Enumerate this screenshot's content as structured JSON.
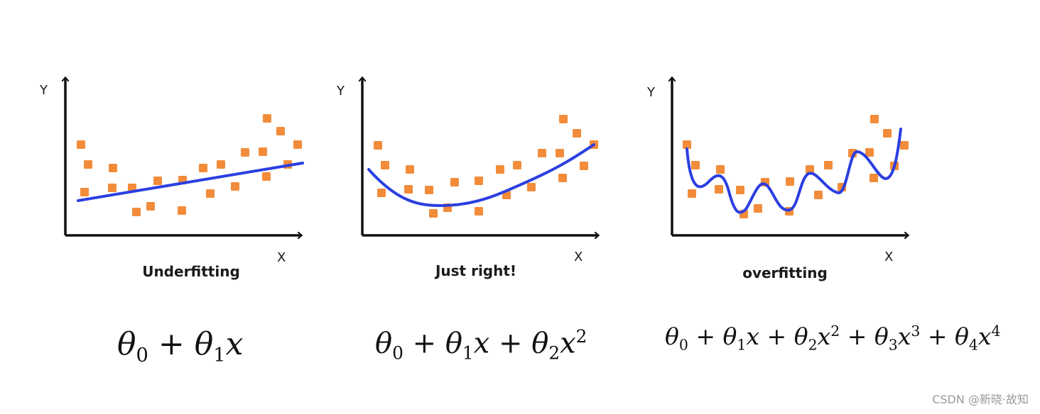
{
  "panels": [
    {
      "id": "underfitting",
      "caption": "Underfitting",
      "y_label": "Y",
      "x_label": "X",
      "formula": {
        "t0": "θ",
        "s0": "0",
        "plus1": " + ",
        "t1": "θ",
        "s1": "1",
        "x1": "x"
      }
    },
    {
      "id": "just-right",
      "caption": "Just right!",
      "y_label": "Y",
      "x_label": "X",
      "formula": {
        "t0": "θ",
        "s0": "0",
        "plus1": " + ",
        "t1": "θ",
        "s1": "1",
        "x1": "x",
        "plus2": " + ",
        "t2": "θ",
        "s2": "2",
        "x2": "x",
        "p2": "2"
      }
    },
    {
      "id": "overfitting",
      "caption": "overfitting",
      "y_label": "Y",
      "x_label": "X",
      "formula": {
        "t0": "θ",
        "s0": "0",
        "plus1": " + ",
        "t1": "θ",
        "s1": "1",
        "x1": "x",
        "plus2": " + ",
        "t2": "θ",
        "s2": "2",
        "x2": "x",
        "p2": "2",
        "plus3": " + ",
        "t3": "θ",
        "s3": "3",
        "x3": "x",
        "p3": "3",
        "plus4": " + ",
        "t4": "θ",
        "s4": "4",
        "x4": "x",
        "p4": "4"
      }
    }
  ],
  "colors": {
    "points": "#f28c3a",
    "curve": "#2b3fe0",
    "axis": "#111111"
  },
  "watermark": "CSDN @新晓·故知"
}
